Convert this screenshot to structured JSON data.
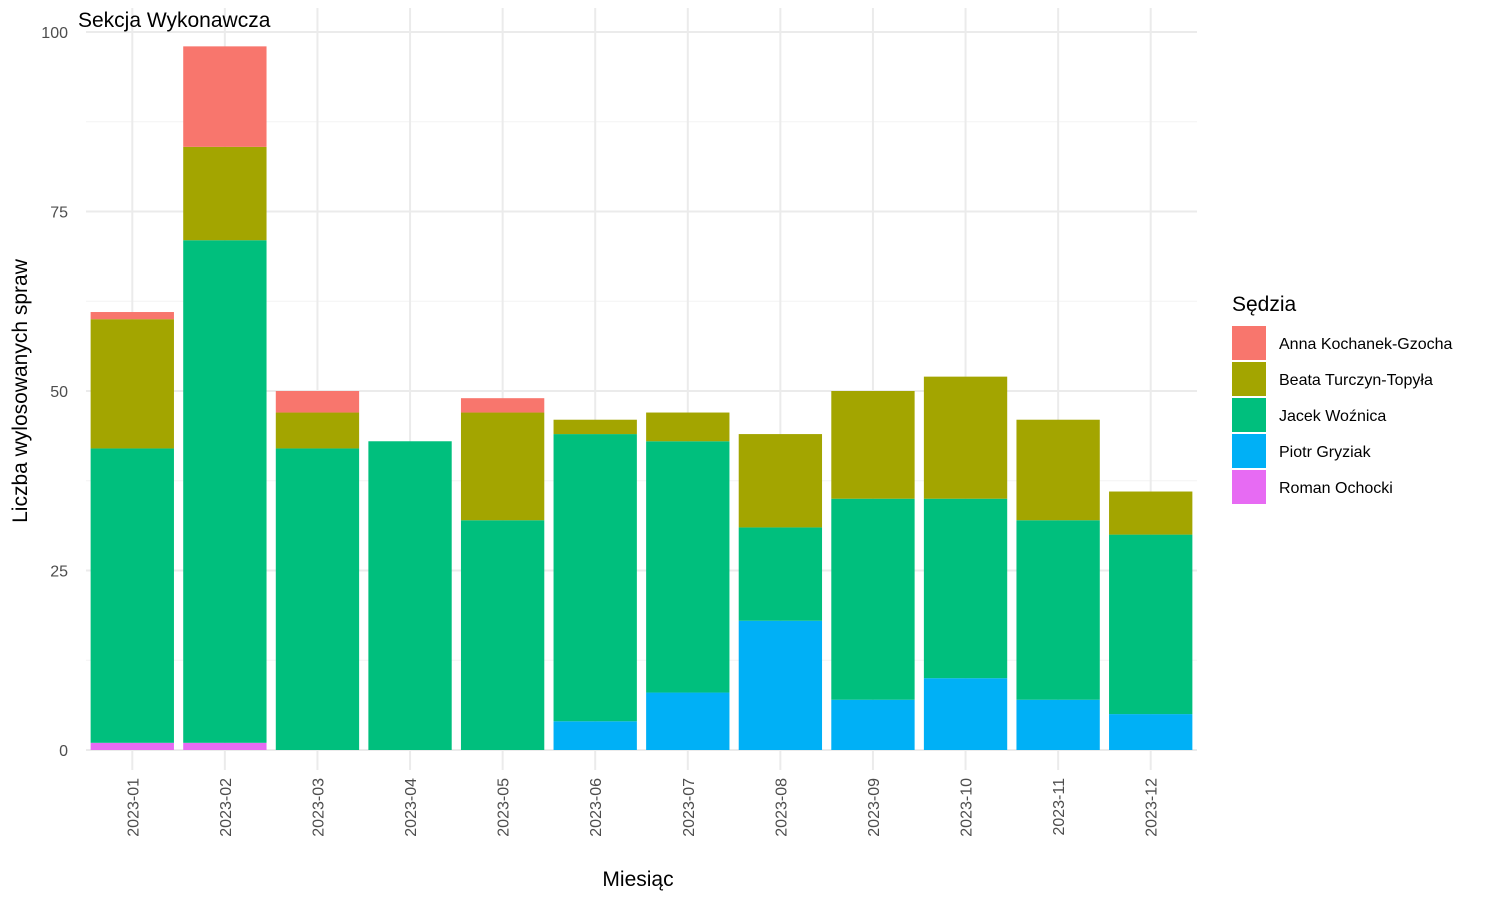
{
  "chart_data": {
    "type": "bar",
    "stacked": true,
    "title": "Sekcja Wykonawcza",
    "xlabel": "Miesiąc",
    "ylabel": "Liczba wylosowanych spraw",
    "ylim": [
      0,
      100
    ],
    "yticks": [
      0,
      25,
      50,
      75,
      100
    ],
    "legend_title": "Sędzia",
    "legend_position": "right",
    "grid": true,
    "categories": [
      "2023-01",
      "2023-02",
      "2023-03",
      "2023-04",
      "2023-05",
      "2023-06",
      "2023-07",
      "2023-08",
      "2023-09",
      "2023-10",
      "2023-11",
      "2023-12"
    ],
    "series": [
      {
        "name": "Anna Kochanek-Gzocha",
        "color": "#F8766D",
        "values": [
          1,
          14,
          3,
          0,
          2,
          0,
          0,
          0,
          0,
          0,
          0,
          0
        ]
      },
      {
        "name": "Beata Turczyn-Topyła",
        "color": "#A3A500",
        "values": [
          18,
          13,
          5,
          0,
          15,
          2,
          4,
          13,
          15,
          17,
          14,
          6
        ]
      },
      {
        "name": "Jacek Woźnica",
        "color": "#00BF7D",
        "values": [
          41,
          70,
          42,
          43,
          32,
          40,
          35,
          13,
          28,
          25,
          25,
          25
        ]
      },
      {
        "name": "Piotr Gryziak",
        "color": "#00B0F6",
        "values": [
          0,
          0,
          0,
          0,
          0,
          4,
          8,
          18,
          7,
          10,
          7,
          5
        ]
      },
      {
        "name": "Roman Ochocki",
        "color": "#E76BF3",
        "values": [
          1,
          1,
          0,
          0,
          0,
          0,
          0,
          0,
          0,
          0,
          0,
          0
        ]
      }
    ]
  }
}
